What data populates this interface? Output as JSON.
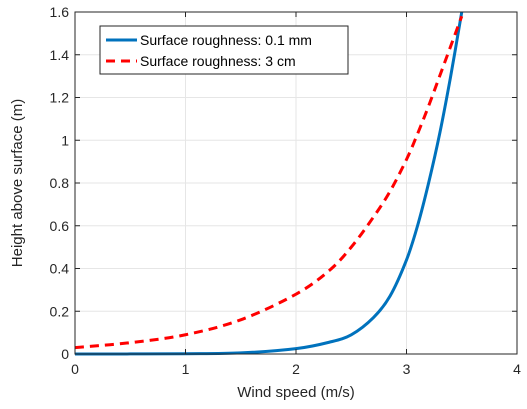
{
  "chart_data": {
    "type": "line",
    "xlabel": "Wind speed (m/s)",
    "ylabel": "Height above surface (m)",
    "xlim": [
      0,
      4
    ],
    "ylim": [
      0,
      1.6
    ],
    "xticks": [
      0,
      1,
      2,
      3,
      4
    ],
    "xtick_labels": [
      "0",
      "1",
      "2",
      "3",
      "4"
    ],
    "yticks": [
      0,
      0.2,
      0.4,
      0.6,
      0.8,
      1.0,
      1.2,
      1.4,
      1.6
    ],
    "ytick_labels": [
      "0",
      "0.2",
      "0.4",
      "0.6",
      "0.8",
      "1",
      "1.2",
      "1.4",
      "1.6"
    ],
    "grid": true,
    "legend_position": "top-left",
    "series": [
      {
        "name": "Surface roughness: 0.1 mm",
        "color": "#0072BD",
        "style": "solid",
        "points": [
          [
            0.0,
            0.0001
          ],
          [
            0.5,
            0.0003
          ],
          [
            1.0,
            0.0012
          ],
          [
            1.5,
            0.005
          ],
          [
            2.0,
            0.025
          ],
          [
            2.3,
            0.055
          ],
          [
            2.5,
            0.09
          ],
          [
            2.7,
            0.17
          ],
          [
            2.85,
            0.27
          ],
          [
            3.0,
            0.44
          ],
          [
            3.1,
            0.6
          ],
          [
            3.2,
            0.8
          ],
          [
            3.3,
            1.03
          ],
          [
            3.4,
            1.3
          ],
          [
            3.5,
            1.6
          ]
        ]
      },
      {
        "name": "Surface roughness: 3 cm",
        "color": "#FF0000",
        "style": "dashed",
        "points": [
          [
            0.0,
            0.03
          ],
          [
            0.5,
            0.053
          ],
          [
            1.0,
            0.09
          ],
          [
            1.5,
            0.16
          ],
          [
            2.0,
            0.28
          ],
          [
            2.3,
            0.39
          ],
          [
            2.5,
            0.5
          ],
          [
            2.7,
            0.64
          ],
          [
            2.85,
            0.76
          ],
          [
            3.0,
            0.91
          ],
          [
            3.1,
            1.03
          ],
          [
            3.2,
            1.16
          ],
          [
            3.3,
            1.3
          ],
          [
            3.4,
            1.44
          ],
          [
            3.5,
            1.58
          ]
        ]
      }
    ]
  }
}
